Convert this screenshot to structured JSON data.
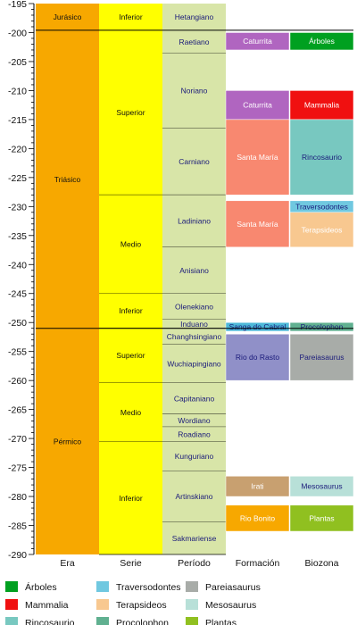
{
  "chart_data": {
    "type": "timeline",
    "y_axis": {
      "min": -290,
      "max": -195,
      "major_step": 5,
      "minor_step": 1,
      "tick_labels": [
        "-195",
        "-200",
        "-205",
        "-210",
        "-215",
        "-220",
        "-225",
        "-230",
        "-235",
        "-240",
        "-245",
        "-250",
        "-255",
        "-260",
        "-265",
        "-270",
        "-275",
        "-280",
        "-285",
        "-290"
      ]
    },
    "columns": [
      "Era",
      "Serie",
      "Período",
      "Formación",
      "Biozona"
    ],
    "era": [
      {
        "label": "Jurásico",
        "top": -195,
        "bottom": -199.6,
        "color": "#f7a800"
      },
      {
        "label": "Triásico",
        "top": -199.6,
        "bottom": -251,
        "color": "#f7a800"
      },
      {
        "label": "Pérmico",
        "top": -251,
        "bottom": -290,
        "color": "#f7a800"
      }
    ],
    "serie": [
      {
        "label": "Inferior",
        "top": -195,
        "bottom": -199.6,
        "color": "#ffff00"
      },
      {
        "label": "Superior",
        "top": -199.6,
        "bottom": -228,
        "color": "#ffff00"
      },
      {
        "label": "Medio",
        "top": -228,
        "bottom": -245,
        "color": "#ffff00"
      },
      {
        "label": "Inferior",
        "top": -245,
        "bottom": -251,
        "color": "#ffff00"
      },
      {
        "label": "Superior",
        "top": -251,
        "bottom": -260.4,
        "color": "#ffff00"
      },
      {
        "label": "Medio",
        "top": -260.4,
        "bottom": -270.6,
        "color": "#ffff00"
      },
      {
        "label": "Inferior",
        "top": -270.6,
        "bottom": -290,
        "color": "#ffff00"
      }
    ],
    "periodo": [
      {
        "label": "Hetangiano",
        "top": -195,
        "bottom": -199.6,
        "color": "#d8e5a8"
      },
      {
        "label": "Raetiano",
        "top": -199.6,
        "bottom": -203.6,
        "color": "#d8e5a8"
      },
      {
        "label": "Noriano",
        "top": -203.6,
        "bottom": -216.5,
        "color": "#d8e5a8"
      },
      {
        "label": "Carniano",
        "top": -216.5,
        "bottom": -228,
        "color": "#d8e5a8"
      },
      {
        "label": "Ladiniano",
        "top": -228,
        "bottom": -237,
        "color": "#d8e5a8"
      },
      {
        "label": "Anisiano",
        "top": -237,
        "bottom": -245,
        "color": "#d8e5a8"
      },
      {
        "label": "Olenekiano",
        "top": -245,
        "bottom": -249.5,
        "color": "#d8e5a8"
      },
      {
        "label": "Induano",
        "top": -249.5,
        "bottom": -251,
        "color": "#d8e5a8"
      },
      {
        "label": "Changhsingiano",
        "top": -251,
        "bottom": -253.8,
        "color": "#d8e5a8"
      },
      {
        "label": "Wuchiapingiano",
        "top": -253.8,
        "bottom": -260.4,
        "color": "#d8e5a8"
      },
      {
        "label": "Capitaniano",
        "top": -260.4,
        "bottom": -265.8,
        "color": "#d8e5a8"
      },
      {
        "label": "Wordiano",
        "top": -265.8,
        "bottom": -268,
        "color": "#d8e5a8"
      },
      {
        "label": "Roadiano",
        "top": -268,
        "bottom": -270.6,
        "color": "#d8e5a8"
      },
      {
        "label": "Kunguriano",
        "top": -270.6,
        "bottom": -275.6,
        "color": "#d8e5a8"
      },
      {
        "label": "Artinskiano",
        "top": -275.6,
        "bottom": -284.4,
        "color": "#d8e5a8"
      },
      {
        "label": "Sakmariense",
        "top": -284.4,
        "bottom": -290,
        "color": "#d8e5a8"
      }
    ],
    "formacion": [
      {
        "label": "Caturrita",
        "top": -200,
        "bottom": -203,
        "color": "#b065c0",
        "text_color": "#ffffff"
      },
      {
        "label": "Caturrita",
        "top": -210,
        "bottom": -215,
        "color": "#b065c0",
        "text_color": "#ffffff"
      },
      {
        "label": "Santa María",
        "top": -215,
        "bottom": -228,
        "color": "#f88870",
        "text_color": "#ffffff"
      },
      {
        "label": "Santa María",
        "top": -229,
        "bottom": -237,
        "color": "#f88870",
        "text_color": "#ffffff"
      },
      {
        "label": "Sanga do Cabral",
        "top": -250,
        "bottom": -251.5,
        "color": "#4db8d8",
        "text_color": "#1a1a7a"
      },
      {
        "label": "Rio do Rasto",
        "top": -252,
        "bottom": -260,
        "color": "#9090c8",
        "text_color": "#1a1a7a"
      },
      {
        "label": "Irati",
        "top": -276.5,
        "bottom": -280,
        "color": "#c8a070",
        "text_color": "#ffffff"
      },
      {
        "label": "Rio Bonito",
        "top": -281.5,
        "bottom": -286,
        "color": "#f7a800",
        "text_color": "#ffffff"
      }
    ],
    "biozona": [
      {
        "label": "Árboles",
        "top": -200,
        "bottom": -203,
        "color": "#00a020",
        "text_color": "#ffffff"
      },
      {
        "label": "Mammalia",
        "top": -210,
        "bottom": -215,
        "color": "#f01010",
        "text_color": "#ffffff"
      },
      {
        "label": "Rincosaurio",
        "top": -215,
        "bottom": -228,
        "color": "#78c8c0",
        "text_color": "#1a1a7a"
      },
      {
        "label": "Traversodontes",
        "top": -229,
        "bottom": -231,
        "color": "#70c8e0",
        "text_color": "#1a1a7a"
      },
      {
        "label": "Terapsideos",
        "top": -231,
        "bottom": -237,
        "color": "#f8c890",
        "text_color": "#ffffff"
      },
      {
        "label": "Procolophon",
        "top": -250,
        "bottom": -251.5,
        "color": "#60b090",
        "text_color": "#1a1a7a"
      },
      {
        "label": "Pareiasaurus",
        "top": -252,
        "bottom": -260,
        "color": "#a8aca8",
        "text_color": "#1a1a7a"
      },
      {
        "label": "Mesosaurus",
        "top": -276.5,
        "bottom": -280,
        "color": "#b8e0d8",
        "text_color": "#1a1a7a"
      },
      {
        "label": "Plantas",
        "top": -281.5,
        "bottom": -286,
        "color": "#90c020",
        "text_color": "#ffffff"
      }
    ],
    "legend": [
      {
        "label": "Árboles",
        "color": "#00a020"
      },
      {
        "label": "Traversodontes",
        "color": "#70c8e0"
      },
      {
        "label": "Pareiasaurus",
        "color": "#a8aca8"
      },
      {
        "label": "Mammalia",
        "color": "#f01010"
      },
      {
        "label": "Terapsideos",
        "color": "#f8c890"
      },
      {
        "label": "Mesosaurus",
        "color": "#b8e0d8"
      },
      {
        "label": "Rincosaurio",
        "color": "#78c8c0"
      },
      {
        "label": "Procolophon",
        "color": "#60b090"
      },
      {
        "label": "Plantas",
        "color": "#90c020"
      }
    ],
    "boundary_lines": [
      -199.6,
      -251
    ]
  }
}
